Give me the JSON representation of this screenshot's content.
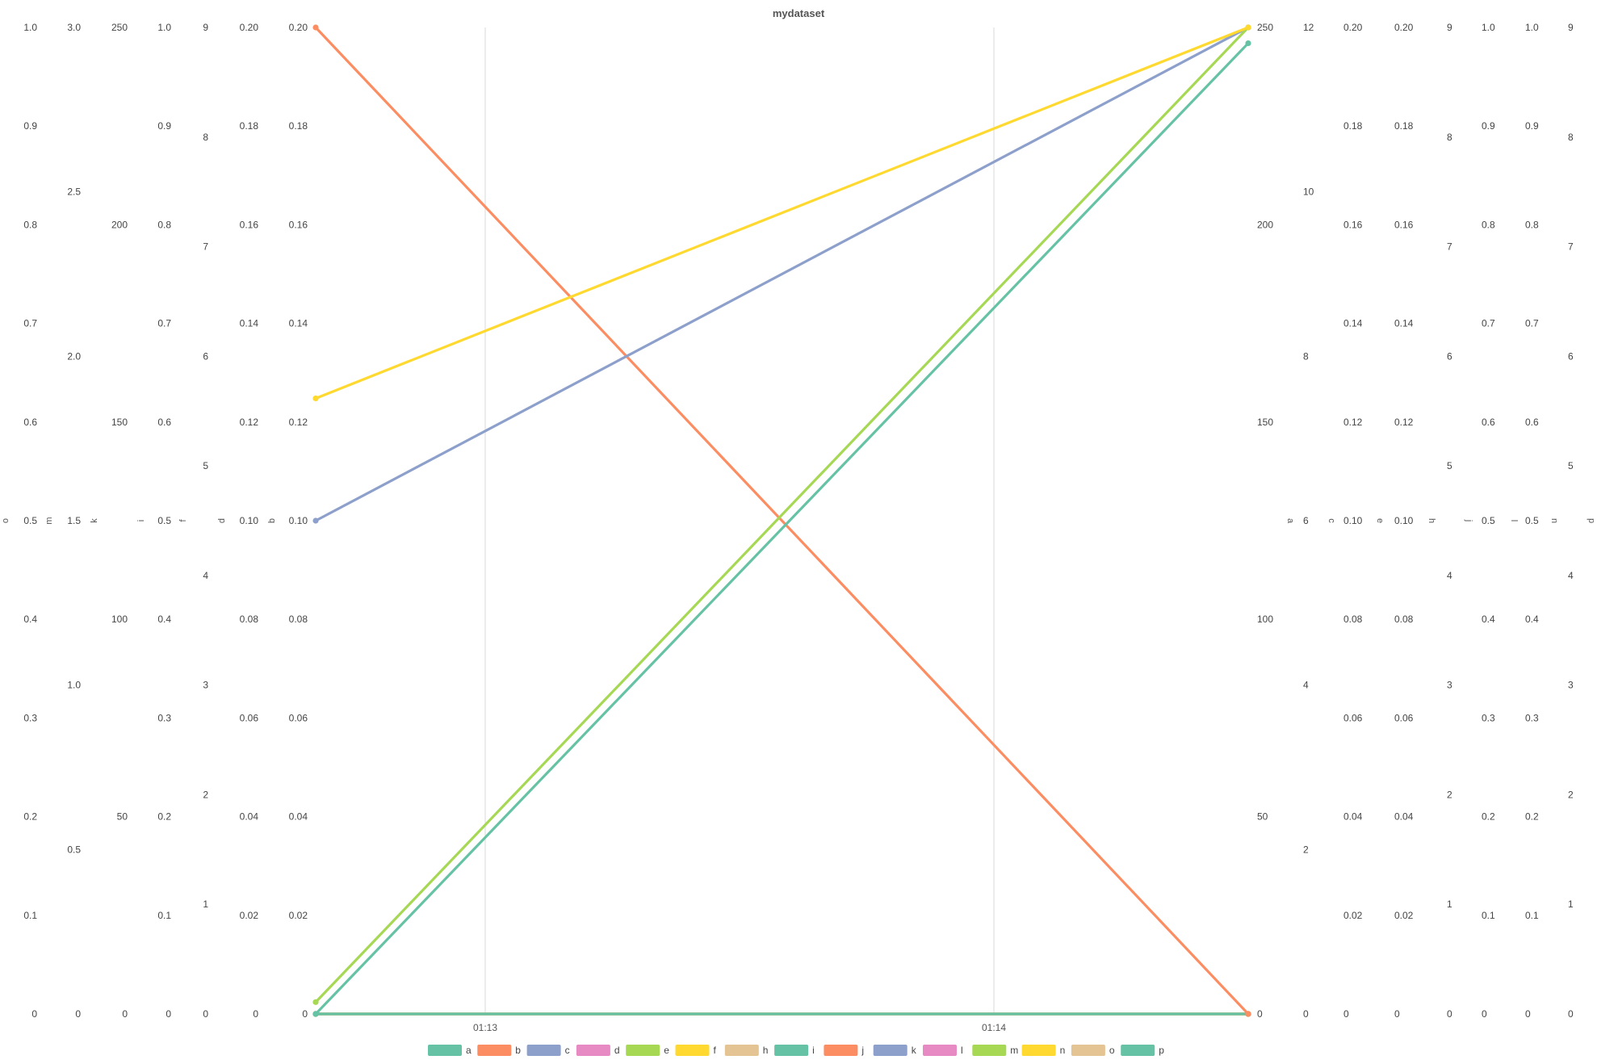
{
  "chart_data": {
    "type": "line",
    "title": "mydataset",
    "x": [
      "01:12:40",
      "01:14:30"
    ],
    "x_ticks": [
      "01:13",
      "01:14"
    ],
    "grid": "vertical lines at x ticks",
    "legend_position": "bottom",
    "series": [
      {
        "name": "a",
        "axis": "a",
        "values": [
          0,
          0
        ],
        "color": "#66c2a5"
      },
      {
        "name": "b",
        "axis": "b",
        "values": [
          0.2,
          0
        ],
        "color": "#fc8d62"
      },
      {
        "name": "c",
        "axis": "a",
        "values": [
          125,
          250
        ],
        "color": "#8da0cb"
      },
      {
        "name": "d",
        "axis": "d",
        "values": [
          0,
          0
        ],
        "color": "#e78ac3"
      },
      {
        "name": "e",
        "axis": "a",
        "values": [
          3,
          250
        ],
        "color": "#a6d854"
      },
      {
        "name": "f",
        "axis": "a",
        "values": [
          156,
          250
        ],
        "color": "#ffd92f"
      },
      {
        "name": "h",
        "axis": "h",
        "values": [
          0,
          0
        ],
        "color": "#e5c494"
      },
      {
        "name": "i",
        "axis": "a",
        "values": [
          0,
          246
        ],
        "color": "#66c2a5"
      },
      {
        "name": "j",
        "axis": "j",
        "values": [
          0,
          0
        ],
        "color": "#fc8d62"
      },
      {
        "name": "k",
        "axis": "k",
        "values": [
          0,
          0
        ],
        "color": "#8da0cb"
      },
      {
        "name": "l",
        "axis": "l",
        "values": [
          0,
          0
        ],
        "color": "#e78ac3"
      },
      {
        "name": "m",
        "axis": "m",
        "values": [
          0,
          0
        ],
        "color": "#a6d854"
      },
      {
        "name": "n",
        "axis": "n",
        "values": [
          0,
          0
        ],
        "color": "#ffd92f"
      },
      {
        "name": "o",
        "axis": "o",
        "values": [
          0,
          0
        ],
        "color": "#e5c494"
      },
      {
        "name": "p",
        "axis": "p",
        "values": [
          0,
          0
        ],
        "color": "#66c2a5"
      }
    ],
    "left_axes": [
      {
        "label": "o",
        "min": 0,
        "max": 1.0,
        "ticks": [
          "0",
          "0.1",
          "0.2",
          "0.3",
          "0.4",
          "0.5",
          "0.6",
          "0.7",
          "0.8",
          "0.9",
          "1.0"
        ]
      },
      {
        "label": "m",
        "min": 0,
        "max": 3.0,
        "ticks": [
          "0",
          "0.5",
          "1.0",
          "1.5",
          "2.0",
          "2.5",
          "3.0"
        ]
      },
      {
        "label": "k",
        "min": 0,
        "max": 250,
        "ticks": [
          "0",
          "50",
          "100",
          "150",
          "200",
          "250"
        ]
      },
      {
        "label": "i",
        "min": 0,
        "max": 1.0,
        "ticks": [
          "0",
          "0.1",
          "0.2",
          "0.3",
          "0.4",
          "0.5",
          "0.6",
          "0.7",
          "0.8",
          "0.9",
          "1.0"
        ]
      },
      {
        "label": "f",
        "min": 0,
        "max": 9,
        "ticks": [
          "0",
          "1",
          "2",
          "3",
          "4",
          "5",
          "6",
          "7",
          "8",
          "9"
        ]
      },
      {
        "label": "d",
        "min": 0,
        "max": 0.2,
        "ticks": [
          "0",
          "0.02",
          "0.04",
          "0.06",
          "0.08",
          "0.10",
          "0.12",
          "0.14",
          "0.16",
          "0.18",
          "0.20"
        ]
      },
      {
        "label": "b",
        "min": 0,
        "max": 0.2,
        "ticks": [
          "0",
          "0.02",
          "0.04",
          "0.06",
          "0.08",
          "0.10",
          "0.12",
          "0.14",
          "0.16",
          "0.18",
          "0.20"
        ]
      }
    ],
    "right_axes": [
      {
        "label": "a",
        "min": 0,
        "max": 250,
        "ticks": [
          "0",
          "50",
          "100",
          "150",
          "200",
          "250"
        ]
      },
      {
        "label": "c",
        "min": 0,
        "max": 12,
        "ticks": [
          "0",
          "2",
          "4",
          "6",
          "8",
          "10",
          "12"
        ]
      },
      {
        "label": "e",
        "min": 0,
        "max": 0.2,
        "ticks": [
          "0",
          "0.02",
          "0.04",
          "0.06",
          "0.08",
          "0.10",
          "0.12",
          "0.14",
          "0.16",
          "0.18",
          "0.20"
        ]
      },
      {
        "label": "h",
        "min": 0,
        "max": 0.2,
        "ticks": [
          "0",
          "0.02",
          "0.04",
          "0.06",
          "0.08",
          "0.10",
          "0.12",
          "0.14",
          "0.16",
          "0.18",
          "0.20"
        ]
      },
      {
        "label": "j",
        "min": 0,
        "max": 9,
        "ticks": [
          "0",
          "1",
          "2",
          "3",
          "4",
          "5",
          "6",
          "7",
          "8",
          "9"
        ]
      },
      {
        "label": "l",
        "min": 0,
        "max": 1.0,
        "ticks": [
          "0",
          "0.1",
          "0.2",
          "0.3",
          "0.4",
          "0.5",
          "0.6",
          "0.7",
          "0.8",
          "0.9",
          "1.0"
        ]
      },
      {
        "label": "n",
        "min": 0,
        "max": 1.0,
        "ticks": [
          "0",
          "0.1",
          "0.2",
          "0.3",
          "0.4",
          "0.5",
          "0.6",
          "0.7",
          "0.8",
          "0.9",
          "1.0"
        ]
      },
      {
        "label": "p",
        "min": 0,
        "max": 9,
        "ticks": [
          "0",
          "1",
          "2",
          "3",
          "4",
          "5",
          "6",
          "7",
          "8",
          "9"
        ]
      }
    ]
  }
}
